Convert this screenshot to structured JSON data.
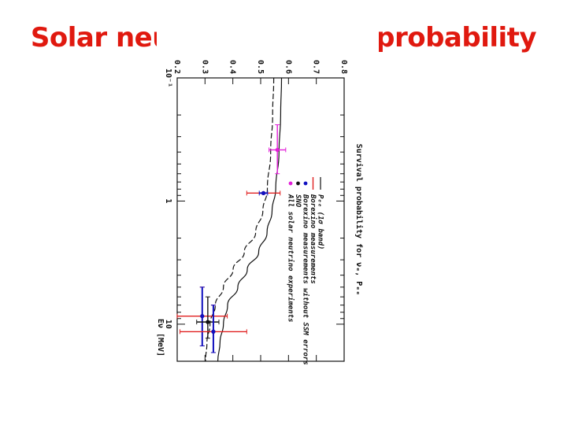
{
  "slide": {
    "title": "Solar neutrino survival probability",
    "title_color": "#e0190f"
  },
  "chart_data": {
    "type": "scatter",
    "orientation": "rotated 90 degrees clockwise",
    "ylabel": "Survival probability for νₑ, Pₑₑ",
    "xlabel": "Eν [MeV]",
    "x_scale": "log",
    "xlim": [
      0.1,
      20
    ],
    "ylim": [
      0.2,
      0.8
    ],
    "y_ticks": [
      "0.2",
      "0.3",
      "0.4",
      "0.5",
      "0.6",
      "0.7",
      "0.8"
    ],
    "x_tick_labels": [
      {
        "value": 0.1,
        "label": "10⁻¹"
      },
      {
        "value": 1,
        "label": "1"
      },
      {
        "value": 10,
        "label": "10"
      }
    ],
    "bands": [
      {
        "name": "Pee upper",
        "x": [
          0.1,
          0.2,
          0.4,
          0.8,
          1.2,
          1.8,
          2.6,
          3.6,
          5,
          7,
          10,
          14,
          20
        ],
        "y": [
          0.575,
          0.572,
          0.566,
          0.554,
          0.541,
          0.523,
          0.493,
          0.452,
          0.418,
          0.381,
          0.366,
          0.354,
          0.346
        ]
      },
      {
        "name": "Pee lower",
        "x": [
          0.1,
          0.2,
          0.4,
          0.8,
          1.2,
          1.8,
          2.6,
          3.6,
          5,
          7,
          10,
          14,
          20
        ],
        "y": [
          0.547,
          0.543,
          0.536,
          0.524,
          0.508,
          0.482,
          0.441,
          0.401,
          0.366,
          0.337,
          0.318,
          0.307,
          0.302
        ]
      }
    ],
    "points": [
      {
        "series": "All solar neutrino experiments",
        "color": "#e21fd8",
        "x": 0.384,
        "y": 0.56,
        "xerr": [
          0.24,
          0.6
        ],
        "yerr": [
          0.03,
          0.03
        ]
      },
      {
        "series": "Borexino measurements",
        "color": "#e02020",
        "x": 0.862,
        "y": 0.51,
        "yerr": [
          0.06,
          0.06
        ]
      },
      {
        "series": "Borexino measurements without SSM errors",
        "color": "#1010c0",
        "x": 0.862,
        "y": 0.51,
        "yerr": [
          0.015,
          0.015
        ]
      },
      {
        "series": "Borexino measurements",
        "color": "#e02020",
        "x": 8.6,
        "y": 0.29,
        "xerr": [
          5.0,
          15.0
        ],
        "yerr": [
          0.09,
          0.09
        ]
      },
      {
        "series": "Borexino measurements without SSM errors",
        "color": "#1010c0",
        "x": 8.6,
        "y": 0.29,
        "xerr": [
          5.0,
          15.0
        ]
      },
      {
        "series": "SNO",
        "color": "#111111",
        "x": 9.6,
        "y": 0.31,
        "xerr": [
          6.0,
          13.0
        ],
        "yerr": [
          0.04,
          0.04
        ]
      },
      {
        "series": "Borexino measurements",
        "color": "#e02020",
        "x": 11.5,
        "y": 0.33,
        "xerr": [
          7.0,
          17.0
        ],
        "yerr": [
          0.12,
          0.12
        ]
      },
      {
        "series": "Borexino measurements without SSM errors",
        "color": "#1010c0",
        "x": 11.5,
        "y": 0.33,
        "xerr": [
          7.0,
          17.0
        ]
      }
    ],
    "legend": {
      "placement": "right",
      "entries": [
        {
          "label": "Pₑₑ (1σ band)",
          "symbol": "line",
          "color": "#111111"
        },
        {
          "label": "Borexino measurements",
          "symbol": "errorbar",
          "color": "#e02020"
        },
        {
          "label": "Borexino measurements without SSM errors",
          "symbol": "dot",
          "color": "#1010c0"
        },
        {
          "label": "SNO",
          "symbol": "dot",
          "color": "#111111"
        },
        {
          "label": "All solar neutrino experiments",
          "symbol": "dot",
          "color": "#e21fd8"
        }
      ]
    },
    "grid": false
  }
}
